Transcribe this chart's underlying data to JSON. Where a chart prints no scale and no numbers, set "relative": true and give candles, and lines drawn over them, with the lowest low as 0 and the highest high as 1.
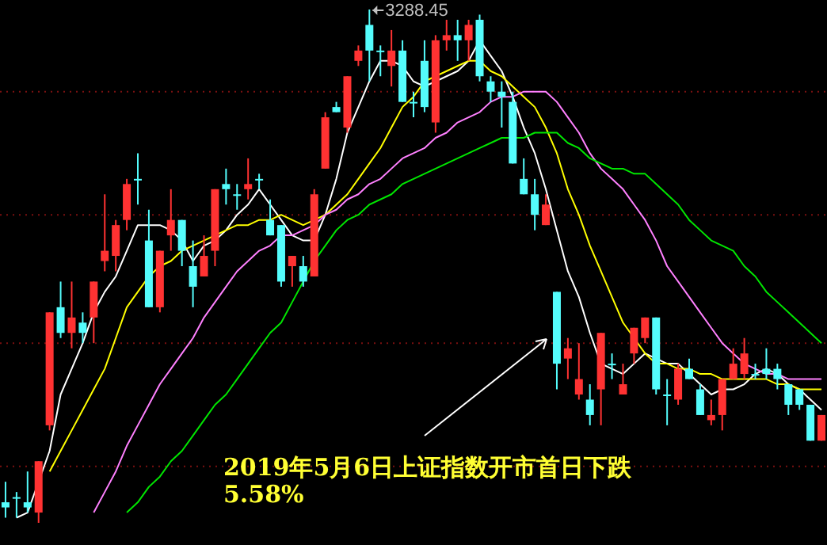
{
  "chart_data": {
    "type": "candlestick",
    "relative": true,
    "categories": [
      null,
      null,
      null,
      null,
      null,
      null,
      null,
      null,
      null,
      null,
      null,
      null,
      null,
      null,
      null,
      null,
      null,
      null,
      null,
      null,
      null,
      null,
      null,
      null,
      null,
      null,
      null,
      null,
      null,
      null,
      null,
      null,
      null,
      null,
      null,
      null,
      null,
      null,
      null,
      null,
      null,
      null,
      null,
      null,
      null,
      null,
      null,
      null,
      null,
      null,
      null,
      null,
      null,
      null,
      null,
      null,
      null,
      null,
      null,
      null,
      null,
      null,
      null,
      null,
      null,
      null,
      null,
      null,
      null,
      null,
      null,
      null,
      null,
      null,
      null
    ],
    "ohlc": [
      [
        0.04,
        0.08,
        0.01,
        0.03
      ],
      [
        0.05,
        0.06,
        0.01,
        0.05
      ],
      [
        0.04,
        0.1,
        0.02,
        0.03
      ],
      [
        0.02,
        0.12,
        0,
        0.12
      ],
      [
        0.19,
        0.41,
        0.18,
        0.41
      ],
      [
        0.42,
        0.47,
        0.36,
        0.37
      ],
      [
        0.37,
        0.47,
        0.34,
        0.4
      ],
      [
        0.39,
        0.41,
        0.35,
        0.37
      ],
      [
        0.4,
        0.47,
        0.35,
        0.47
      ],
      [
        0.51,
        0.64,
        0.49,
        0.53
      ],
      [
        0.52,
        0.59,
        0.49,
        0.58
      ],
      [
        0.59,
        0.67,
        0.57,
        0.66
      ],
      [
        0.67,
        0.72,
        0.62,
        0.67
      ],
      [
        0.55,
        0.61,
        0.42,
        0.42
      ],
      [
        0.42,
        0.53,
        0.41,
        0.53
      ],
      [
        0.56,
        0.65,
        0.53,
        0.59
      ],
      [
        0.59,
        0.59,
        0.5,
        0.53
      ],
      [
        0.5,
        0.55,
        0.42,
        0.46
      ],
      [
        0.48,
        0.56,
        0.48,
        0.52
      ],
      [
        0.53,
        0.65,
        0.5,
        0.65
      ],
      [
        0.66,
        0.69,
        0.62,
        0.65
      ],
      [
        0.64,
        0.66,
        0.61,
        0.64
      ],
      [
        0.65,
        0.71,
        0.63,
        0.66
      ],
      [
        0.67,
        0.68,
        0.65,
        0.67
      ],
      [
        0.59,
        0.63,
        0.56,
        0.56
      ],
      [
        0.58,
        0.58,
        0.46,
        0.47
      ],
      [
        0.5,
        0.52,
        0.46,
        0.52
      ],
      [
        0.5,
        0.52,
        0.46,
        0.47
      ],
      [
        0.48,
        0.65,
        0.48,
        0.64
      ],
      [
        0.69,
        0.8,
        0.69,
        0.79
      ],
      [
        0.81,
        0.82,
        0.8,
        0.8
      ],
      [
        0.77,
        0.87,
        0.76,
        0.87
      ],
      [
        0.9,
        0.93,
        0.89,
        0.92
      ],
      [
        0.97,
        1,
        0.86,
        0.92
      ],
      [
        0.92,
        0.93,
        0.87,
        0.92
      ],
      [
        0.89,
        0.96,
        0.85,
        0.92
      ],
      [
        0.92,
        0.94,
        0.82,
        0.82
      ],
      [
        0.82,
        0.84,
        0.79,
        0.82
      ],
      [
        0.9,
        0.94,
        0.8,
        0.81
      ],
      [
        0.78,
        0.95,
        0.76,
        0.94
      ],
      [
        0.94,
        0.98,
        0.92,
        0.95
      ],
      [
        0.95,
        0.98,
        0.9,
        0.94
      ],
      [
        0.94,
        0.98,
        0.9,
        0.97
      ],
      [
        0.98,
        0.99,
        0.86,
        0.87
      ],
      [
        0.86,
        0.87,
        0.82,
        0.84
      ],
      [
        0.84,
        0.86,
        0.77,
        0.83
      ],
      [
        0.82,
        0.84,
        0.7,
        0.7
      ],
      [
        0.67,
        0.71,
        0.64,
        0.64
      ],
      [
        0.64,
        0.67,
        0.57,
        0.6
      ],
      [
        0.58,
        0.64,
        0.58,
        0.62
      ],
      [
        0.45,
        0.45,
        0.26,
        0.31
      ],
      [
        0.32,
        0.36,
        0.28,
        0.34
      ],
      [
        0.25,
        0.35,
        0.24,
        0.28
      ],
      [
        0.24,
        0.27,
        0.19,
        0.21
      ],
      [
        0.26,
        0.37,
        0.19,
        0.37
      ],
      [
        0.31,
        0.33,
        0.28,
        0.31
      ],
      [
        0.25,
        0.31,
        0.25,
        0.27
      ],
      [
        0.33,
        0.38,
        0.31,
        0.38
      ],
      [
        0.36,
        0.4,
        0.35,
        0.4
      ],
      [
        0.4,
        0.4,
        0.25,
        0.26
      ],
      [
        0.25,
        0.28,
        0.19,
        0.25
      ],
      [
        0.24,
        0.31,
        0.23,
        0.3
      ],
      [
        0.3,
        0.32,
        0.28,
        0.28
      ],
      [
        0.26,
        0.27,
        0.21,
        0.21
      ],
      [
        0.2,
        0.24,
        0.19,
        0.21
      ],
      [
        0.21,
        0.28,
        0.18,
        0.28
      ],
      [
        0.28,
        0.34,
        0.28,
        0.31
      ],
      [
        0.29,
        0.36,
        0.28,
        0.33
      ],
      [
        0.29,
        0.31,
        0.28,
        0.29
      ],
      [
        0.3,
        0.34,
        0.28,
        0.29
      ],
      [
        0.3,
        0.31,
        0.26,
        0.28
      ],
      [
        0.27,
        0.27,
        0.21,
        0.23
      ],
      [
        0.26,
        0.26,
        0.22,
        0.23
      ],
      [
        0.23,
        0.23,
        0.16,
        0.16
      ],
      [
        0.16,
        0.21,
        0.16,
        0.21
      ]
    ],
    "series": [
      {
        "type": "line",
        "color": "#ffffff",
        "values": [
          null,
          0.01,
          0.02,
          null,
          0.14,
          0.25,
          0.3,
          0.35,
          0.41,
          0.45,
          0.48,
          0.53,
          0.58,
          0.58,
          0.58,
          0.57,
          0.55,
          0.51,
          0.54,
          0.55,
          0.57,
          0.6,
          0.62,
          0.65,
          0.62,
          0.59,
          0.56,
          0.55,
          0.55,
          0.6,
          0.67,
          0.76,
          0.81,
          0.86,
          0.9,
          0.9,
          0.89,
          0.86,
          0.85,
          0.86,
          0.87,
          0.88,
          0.9,
          0.94,
          0.91,
          0.88,
          0.83,
          0.77,
          0.72,
          0.65,
          0.57,
          0.49,
          0.44,
          0.37,
          0.31,
          0.3,
          0.29,
          0.31,
          0.33,
          null,
          0.31,
          0.31,
          0.29,
          0.27,
          0.25,
          0.26,
          0.26,
          0.27,
          0.29,
          0.3,
          0.29,
          0.27,
          0.26,
          0.24,
          0.22
        ]
      },
      {
        "type": "line",
        "color": "#ffff00",
        "values": [
          null,
          null,
          null,
          null,
          0.1,
          0.14,
          0.18,
          0.22,
          0.26,
          0.3,
          0.36,
          0.42,
          0.45,
          0.48,
          0.5,
          0.51,
          0.53,
          0.54,
          0.55,
          0.56,
          0.57,
          0.58,
          0.58,
          0.59,
          0.59,
          0.6,
          0.59,
          0.58,
          0.59,
          0.6,
          0.62,
          0.64,
          0.67,
          0.7,
          0.73,
          0.77,
          0.81,
          0.83,
          0.86,
          0.87,
          0.88,
          0.89,
          0.9,
          0.9,
          0.88,
          0.87,
          0.85,
          0.83,
          0.81,
          0.77,
          0.72,
          0.65,
          0.6,
          0.54,
          0.49,
          0.44,
          0.39,
          0.36,
          0.33,
          0.31,
          0.31,
          0.3,
          0.3,
          0.29,
          0.29,
          0.28,
          0.28,
          0.28,
          0.28,
          0.28,
          0.27,
          0.27,
          0.26,
          0.26,
          0.26
        ]
      },
      {
        "type": "line",
        "color": "#ff80ff",
        "values": [
          null,
          null,
          null,
          null,
          null,
          null,
          null,
          null,
          0.02,
          0.06,
          0.1,
          0.15,
          0.19,
          0.23,
          0.27,
          0.3,
          0.33,
          0.36,
          0.4,
          0.43,
          0.46,
          0.49,
          0.51,
          0.53,
          0.54,
          0.56,
          0.56,
          0.57,
          0.58,
          0.6,
          0.61,
          0.63,
          0.64,
          0.66,
          0.67,
          0.69,
          0.71,
          0.72,
          0.73,
          0.75,
          0.76,
          0.78,
          0.79,
          0.8,
          0.82,
          0.83,
          0.83,
          0.84,
          0.84,
          0.84,
          0.82,
          0.79,
          0.76,
          0.72,
          0.69,
          0.67,
          0.65,
          0.62,
          0.59,
          0.55,
          0.5,
          0.47,
          0.44,
          0.41,
          0.38,
          0.35,
          0.33,
          0.31,
          0.3,
          0.29,
          0.29,
          0.28,
          0.28,
          0.28,
          0.28
        ]
      },
      {
        "type": "line",
        "color": "#00e600",
        "values": [
          null,
          null,
          null,
          null,
          null,
          null,
          null,
          null,
          null,
          null,
          null,
          0.02,
          0.04,
          0.07,
          0.09,
          0.12,
          0.14,
          0.17,
          0.2,
          0.23,
          0.25,
          0.28,
          0.31,
          0.34,
          0.37,
          0.39,
          0.43,
          0.47,
          0.51,
          0.54,
          0.57,
          0.59,
          0.6,
          0.62,
          0.63,
          0.64,
          0.66,
          0.67,
          0.68,
          0.69,
          0.7,
          0.71,
          0.72,
          0.73,
          0.74,
          0.75,
          0.75,
          0.75,
          0.76,
          0.76,
          0.76,
          0.74,
          0.73,
          0.71,
          0.7,
          0.69,
          0.69,
          0.68,
          0.68,
          0.66,
          0.64,
          0.62,
          0.59,
          0.57,
          0.55,
          0.54,
          0.53,
          0.5,
          0.48,
          0.45,
          0.43,
          0.41,
          0.39,
          0.37,
          0.35
        ]
      }
    ],
    "annotations": [
      "3288.45",
      "2019年5月6日上证指数开市首日下跌5.58%"
    ],
    "ref_lines": [
      {
        "axis": "y",
        "value": 0.84,
        "color": "#7a1010",
        "line_style": "dotted"
      },
      {
        "axis": "y",
        "value": 0.6,
        "color": "#7a1010",
        "line_style": "dotted"
      },
      {
        "axis": "y",
        "value": 0.35,
        "color": "#7a1010",
        "line_style": "dotted"
      },
      {
        "axis": "y",
        "value": 0.11,
        "color": "#7a1010",
        "line_style": "dotted"
      }
    ]
  }
}
